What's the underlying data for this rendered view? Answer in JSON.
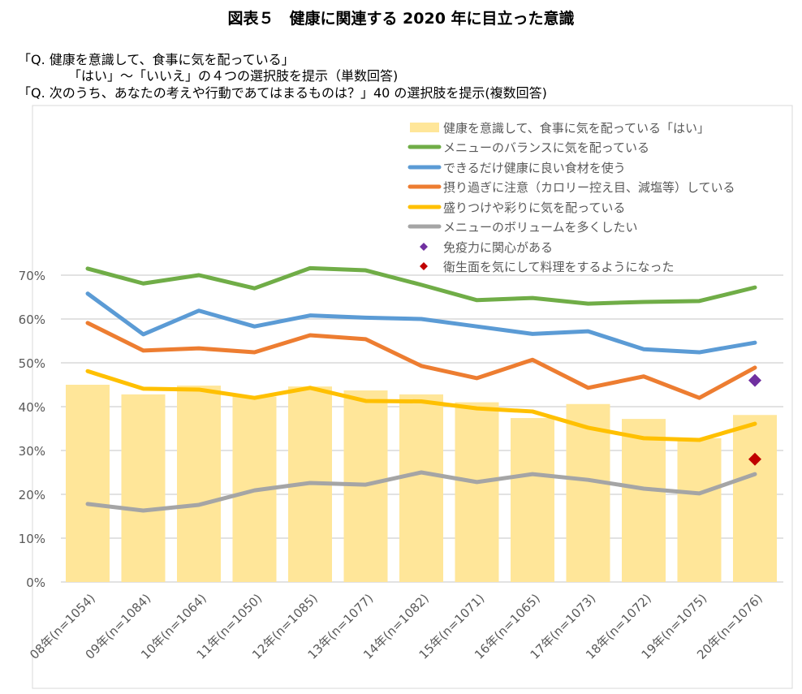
{
  "chart_data": {
    "type": "bar",
    "title": "図表５　健康に関連する 2020 年に目立った意識",
    "subtitle_lines": [
      "「Q. 健康を意識して、食事に気を配っている」",
      "「はい」～「いいえ」の４つの選択肢を提示（単数回答)",
      "「Q. 次のうち、あなたの考えや行動であてはまるものは？」40 の選択肢を提示(複数回答)"
    ],
    "categories": [
      "08年(n=1054)",
      "09年(n=1084)",
      "10年(n=1064)",
      "11年(n=1050)",
      "12年(n=1085)",
      "13年(n=1077)",
      "14年(n=1082)",
      "15年(n=1071)",
      "16年(n=1065)",
      "17年(n=1073)",
      "18年(n=1072)",
      "19年(n=1075)",
      "20年(n=1076)"
    ],
    "y_ticks": [
      "0%",
      "10%",
      "20%",
      "30%",
      "40%",
      "50%",
      "60%",
      "70%"
    ],
    "ylim": [
      0,
      70
    ],
    "xlabel": "",
    "ylabel": "",
    "grid": true,
    "legend_position": "top-right",
    "bar_series": {
      "name": "健康を意識して、食事に気を配っている「はい」",
      "color": "#FFE699",
      "values": [
        45.0,
        42.8,
        44.8,
        42.3,
        44.6,
        43.7,
        42.8,
        41.0,
        37.4,
        40.6,
        37.2,
        32.8,
        38.1
      ]
    },
    "series": [
      {
        "name": "メニューのバランスに気を配っている",
        "color": "#70AD47",
        "values": [
          71.5,
          68.1,
          70.0,
          67.0,
          71.6,
          71.1,
          67.8,
          64.3,
          64.8,
          63.5,
          63.9,
          64.1,
          67.2
        ]
      },
      {
        "name": "できるだけ健康に良い食材を使う",
        "color": "#5B9BD5",
        "values": [
          65.8,
          56.5,
          61.9,
          58.3,
          60.8,
          60.3,
          60.0,
          58.3,
          56.6,
          57.2,
          53.1,
          52.4,
          54.6
        ]
      },
      {
        "name": "摂り過ぎに注意（カロリー控え目、減塩等）している",
        "color": "#ED7D31",
        "values": [
          59.1,
          52.8,
          53.3,
          52.4,
          56.3,
          55.4,
          49.3,
          46.5,
          50.7,
          44.3,
          46.9,
          42.0,
          48.9
        ]
      },
      {
        "name": "盛りつけや彩りに気を配っている",
        "color": "#FFC000",
        "values": [
          48.1,
          44.1,
          43.9,
          42.0,
          44.3,
          41.3,
          41.2,
          39.6,
          38.9,
          35.2,
          32.8,
          32.4,
          36.1
        ]
      },
      {
        "name": "メニューのボリュームを多くしたい",
        "color": "#A5A5A5",
        "values": [
          17.8,
          16.3,
          17.6,
          20.9,
          22.6,
          22.2,
          25.0,
          22.8,
          24.6,
          23.3,
          21.3,
          20.2,
          24.6
        ]
      }
    ],
    "points": [
      {
        "name": "免疫力に関心がある",
        "color": "#7030A0",
        "category": "20年(n=1076)",
        "value": 46.0
      },
      {
        "name": "衛生面を気にして料理をするようになった",
        "color": "#C00000",
        "category": "20年(n=1076)",
        "value": 28.0
      }
    ]
  }
}
